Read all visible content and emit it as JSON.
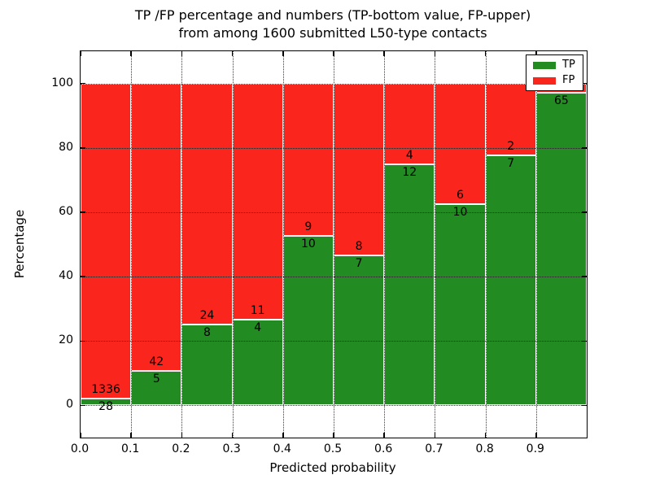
{
  "chart_data": {
    "type": "bar",
    "subtype": "stacked-percentage-histogram",
    "title_line1": "TP /FP percentage and numbers (TP-bottom value, FP-upper)",
    "title_line2": "from among 1600 submitted L50-type contacts",
    "xlabel": "Predicted probability",
    "ylabel": "Percentage",
    "total_contacts": 1600,
    "xlim": [
      0.0,
      1.0
    ],
    "ylim": [
      -10,
      110
    ],
    "grid": "dotted",
    "yticks": [
      0,
      20,
      40,
      60,
      80,
      100
    ],
    "xtick_labels": [
      "0.0",
      "0.1",
      "0.2",
      "0.3",
      "0.4",
      "0.5",
      "0.6",
      "0.7",
      "0.8",
      "0.9"
    ],
    "legend_position": "upper-right",
    "legend": [
      {
        "label": "TP",
        "color": "#228b22"
      },
      {
        "label": "FP",
        "color": "#fa251c"
      }
    ],
    "colors": {
      "tp": "#228b22",
      "fp": "#fa251c",
      "bar_edge": "#ffffff",
      "text": "#000000"
    },
    "bars": [
      {
        "bin_start": 0.0,
        "bin_end": 0.1,
        "tp": 28,
        "fp": 1336,
        "tp_label": "28",
        "fp_label": "1336"
      },
      {
        "bin_start": 0.1,
        "bin_end": 0.2,
        "tp": 5,
        "fp": 42,
        "tp_label": "5",
        "fp_label": "42"
      },
      {
        "bin_start": 0.2,
        "bin_end": 0.3,
        "tp": 8,
        "fp": 24,
        "tp_label": "8",
        "fp_label": "24"
      },
      {
        "bin_start": 0.3,
        "bin_end": 0.4,
        "tp": 4,
        "fp": 11,
        "tp_label": "4",
        "fp_label": "11"
      },
      {
        "bin_start": 0.4,
        "bin_end": 0.5,
        "tp": 10,
        "fp": 9,
        "tp_label": "10",
        "fp_label": "9"
      },
      {
        "bin_start": 0.5,
        "bin_end": 0.6,
        "tp": 7,
        "fp": 8,
        "tp_label": "7",
        "fp_label": "8"
      },
      {
        "bin_start": 0.6,
        "bin_end": 0.7,
        "tp": 12,
        "fp": 4,
        "tp_label": "12",
        "fp_label": "4"
      },
      {
        "bin_start": 0.7,
        "bin_end": 0.8,
        "tp": 10,
        "fp": 6,
        "tp_label": "10",
        "fp_label": "6"
      },
      {
        "bin_start": 0.8,
        "bin_end": 0.9,
        "tp": 7,
        "fp": 2,
        "tp_label": "7",
        "fp_label": "2"
      },
      {
        "bin_start": 0.9,
        "bin_end": 1.0,
        "tp": 65,
        "fp": 2,
        "tp_label": "65",
        "fp_label": ""
      }
    ]
  }
}
